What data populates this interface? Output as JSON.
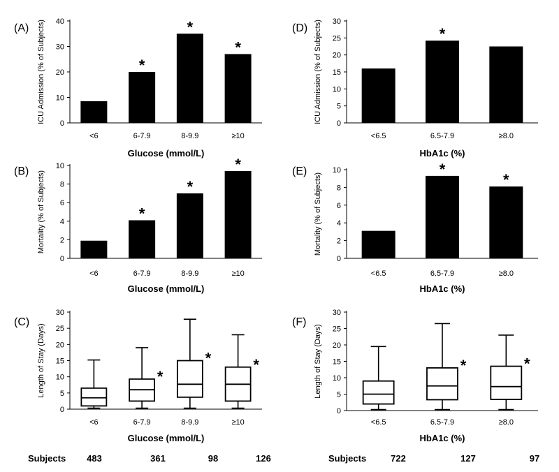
{
  "chart_data": [
    {
      "panel": "(A)",
      "type": "bar",
      "ylabel": "ICU Admission  (% of Subjects)",
      "xlabel": "Glucose (mmol/L)",
      "categories": [
        "<6",
        "6-7.9",
        "8-9.9",
        "≥10"
      ],
      "values": [
        8.5,
        20,
        35,
        27
      ],
      "significant": [
        false,
        true,
        true,
        true
      ],
      "ylim": [
        0,
        40
      ],
      "yticks": [
        0,
        10,
        20,
        30,
        40
      ]
    },
    {
      "panel": "(D)",
      "type": "bar",
      "ylabel": "ICU Admission  (% of Subjects)",
      "xlabel": "HbA1c (%)",
      "categories": [
        "<6.5",
        "6.5-7.9",
        "≥8.0"
      ],
      "values": [
        16,
        24.2,
        22.5
      ],
      "significant": [
        false,
        true,
        false
      ],
      "ylim": [
        0,
        30
      ],
      "yticks": [
        0,
        5,
        10,
        15,
        20,
        25,
        30
      ]
    },
    {
      "panel": "(B)",
      "type": "bar",
      "ylabel": "Mortality  (% of Subjects)",
      "xlabel": "Glucose (mmol/L)",
      "categories": [
        "<6",
        "6-7.9",
        "8-9.9",
        "≥10"
      ],
      "values": [
        1.9,
        4.1,
        7.0,
        9.4
      ],
      "significant": [
        false,
        true,
        true,
        true
      ],
      "ylim": [
        0,
        10
      ],
      "yticks": [
        0,
        2,
        4,
        6,
        8,
        10
      ]
    },
    {
      "panel": "(E)",
      "type": "bar",
      "ylabel": "Mortality  (% of Subjects)",
      "xlabel": "HbA1c (%)",
      "categories": [
        "<6.5",
        "6.5-7.9",
        "≥8.0"
      ],
      "values": [
        3.1,
        9.3,
        8.1
      ],
      "significant": [
        false,
        true,
        true
      ],
      "ylim": [
        0,
        10
      ],
      "yticks": [
        0,
        2,
        4,
        6,
        8,
        10
      ]
    },
    {
      "panel": "(C)",
      "type": "box",
      "ylabel": "Length of Stay (Days)",
      "xlabel": "Glucose (mmol/L)",
      "categories": [
        "<6",
        "6-7.9",
        "8-9.9",
        "≥10"
      ],
      "boxes": [
        {
          "min": 0.3,
          "q1": 1,
          "median": 3.5,
          "q3": 6.5,
          "max": 15.2
        },
        {
          "min": 0.3,
          "q1": 2.5,
          "median": 6,
          "q3": 9.3,
          "max": 19
        },
        {
          "min": 0.3,
          "q1": 3.7,
          "median": 7.7,
          "q3": 15,
          "max": 27.8
        },
        {
          "min": 0.3,
          "q1": 2.5,
          "median": 7.7,
          "q3": 13,
          "max": 23
        }
      ],
      "significant": [
        false,
        true,
        true,
        true
      ],
      "ylim": [
        0,
        30
      ],
      "yticks": [
        0,
        5,
        10,
        15,
        20,
        25,
        30
      ],
      "subjects_label": "Subjects",
      "subjects": [
        "483",
        "361",
        "98",
        "126"
      ]
    },
    {
      "panel": "(F)",
      "type": "box",
      "ylabel": "Length of Stay (Days)",
      "xlabel": "HbA1c (%)",
      "categories": [
        "<6.5",
        "6.5-7.9",
        "≥8.0"
      ],
      "boxes": [
        {
          "min": 0.3,
          "q1": 2,
          "median": 5,
          "q3": 9,
          "max": 19.5
        },
        {
          "min": 0.3,
          "q1": 3.3,
          "median": 7.5,
          "q3": 13,
          "max": 26.5
        },
        {
          "min": 0.3,
          "q1": 3.4,
          "median": 7.3,
          "q3": 13.5,
          "max": 23
        }
      ],
      "significant": [
        false,
        true,
        true
      ],
      "ylim": [
        0,
        30
      ],
      "yticks": [
        0,
        5,
        10,
        15,
        20,
        25,
        30
      ],
      "subjects_label": "Subjects",
      "subjects": [
        "722",
        "127",
        "97"
      ]
    }
  ],
  "star_symbol": "*"
}
